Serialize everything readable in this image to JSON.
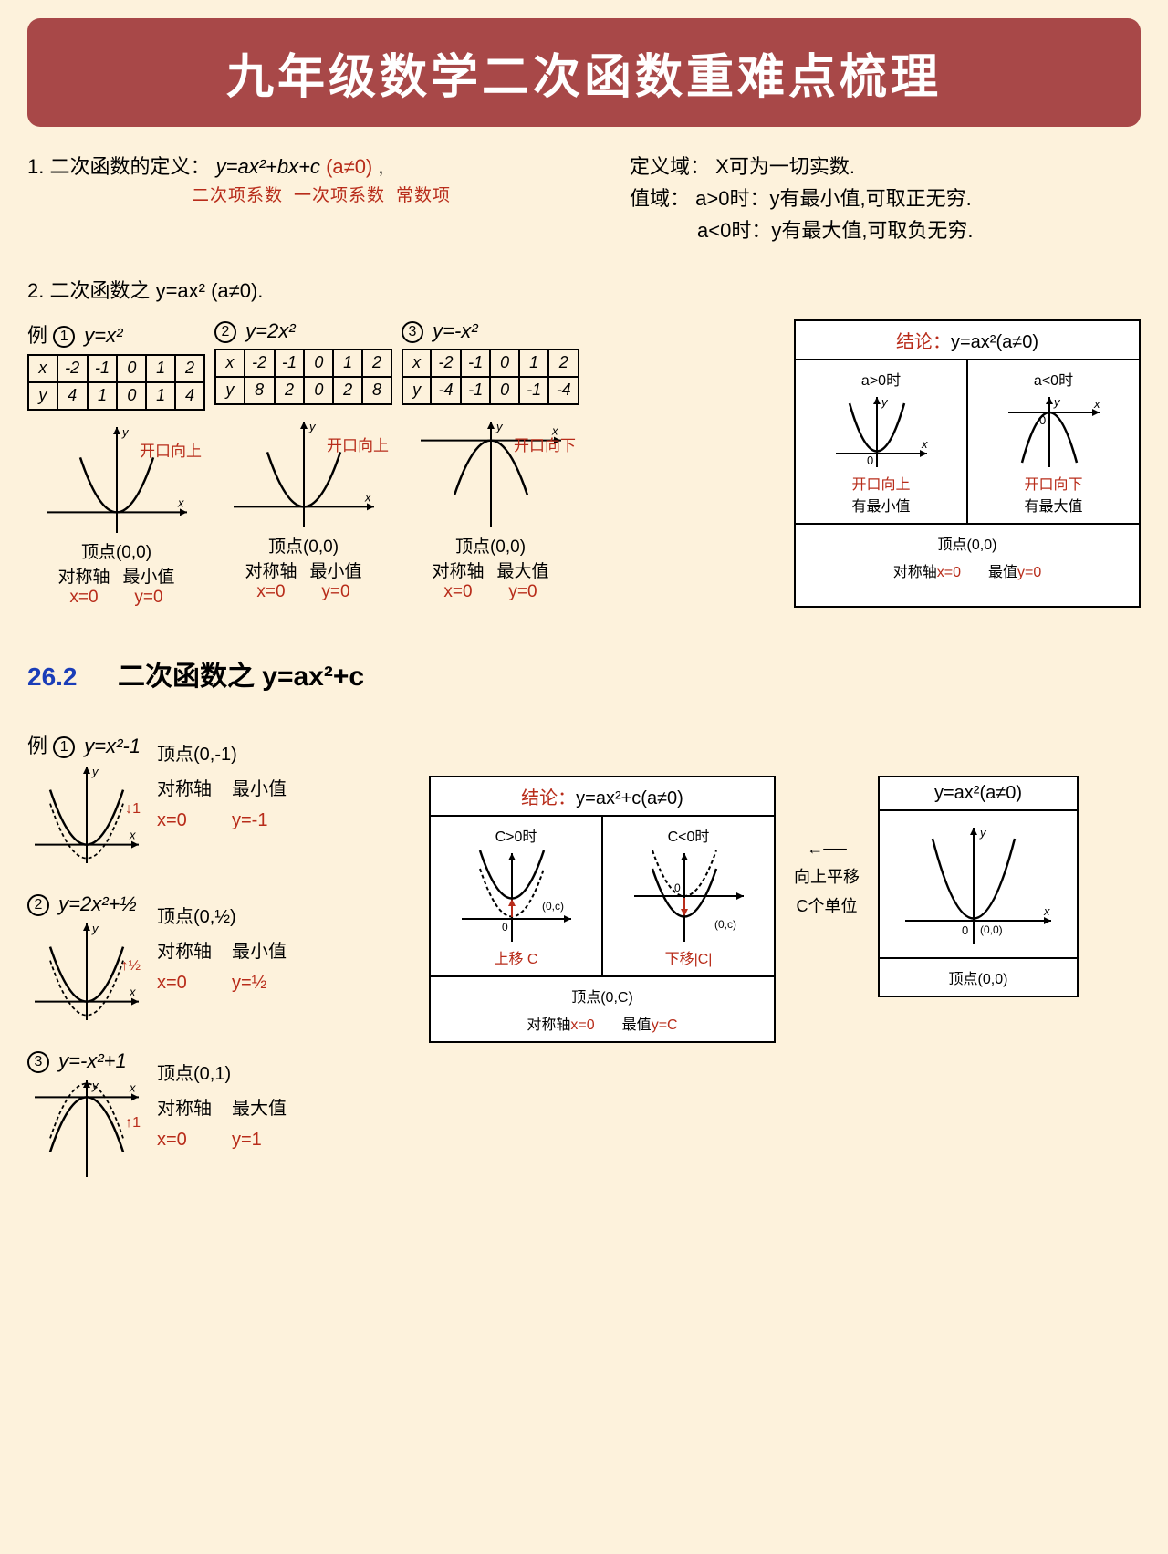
{
  "colors": {
    "bg": "#fdf2dc",
    "banner": "#a84848",
    "red": "#b82c1a",
    "blue": "#1a3db8",
    "black": "#000000",
    "white": "#ffffff"
  },
  "title": "九年级数学二次函数重难点梳理",
  "def": {
    "line1_prefix": "1. 二次函数的定义：",
    "formula": "y=ax²+bx+c",
    "cond": "(a≠0)",
    "coef_a": "二次项系数",
    "coef_b": "一次项系数",
    "coef_c": "常数项",
    "domain_label": "定义域：",
    "domain_text": "X可为一切实数.",
    "range_label": "值域：",
    "range_line1": "a>0时：y有最小值,可取正无穷.",
    "range_line2": "a<0时：y有最大值,可取负无穷."
  },
  "sec_ax2": {
    "heading": "2. 二次函数之 y=ax² (a≠0).",
    "example_label": "例",
    "examples": [
      {
        "num": "①",
        "eq": "y=x²",
        "x": [
          "x",
          "-2",
          "-1",
          "0",
          "1",
          "2"
        ],
        "y": [
          "y",
          "4",
          "1",
          "0",
          "1",
          "4"
        ],
        "open": "开口向上",
        "vertex": "顶点(0,0)",
        "axis_lbl": "对称轴",
        "axis_val": "x=0",
        "ext_lbl": "最小值",
        "ext_val": "y=0",
        "dir": "up"
      },
      {
        "num": "②",
        "eq": "y=2x²",
        "x": [
          "x",
          "-2",
          "-1",
          "0",
          "1",
          "2"
        ],
        "y": [
          "y",
          "8",
          "2",
          "0",
          "2",
          "8"
        ],
        "open": "开口向上",
        "vertex": "顶点(0,0)",
        "axis_lbl": "对称轴",
        "axis_val": "x=0",
        "ext_lbl": "最小值",
        "ext_val": "y=0",
        "dir": "up"
      },
      {
        "num": "③",
        "eq": "y=-x²",
        "x": [
          "x",
          "-2",
          "-1",
          "0",
          "1",
          "2"
        ],
        "y": [
          "y",
          "-4",
          "-1",
          "0",
          "-1",
          "-4"
        ],
        "open": "开口向下",
        "vertex": "顶点(0,0)",
        "axis_lbl": "对称轴",
        "axis_val": "x=0",
        "ext_lbl": "最大值",
        "ext_val": "y=0",
        "dir": "down"
      }
    ],
    "conclusion": {
      "title_pre": "结论：",
      "title_eq": "y=ax²(a≠0)",
      "left": {
        "cond": "a>0时",
        "open": "开口向上",
        "ext": "有最小值"
      },
      "right": {
        "cond": "a<0时",
        "open": "开口向下",
        "ext": "有最大值"
      },
      "bottom": {
        "vertex": "顶点(0,0)",
        "axis_lbl": "对称轴",
        "axis_val": "x=0",
        "ext_lbl": "最值",
        "ext_val": "y=0"
      }
    }
  },
  "sec_262": {
    "num": "26.2",
    "title": "二次函数之 y=ax²+c",
    "example_label": "例",
    "examples": [
      {
        "num": "①",
        "eq": "y=x²-1",
        "shift": "↓1",
        "vertex": "顶点(0,-1)",
        "axis_lbl": "对称轴",
        "axis_val": "x=0",
        "ext_lbl": "最小值",
        "ext_val": "y=-1",
        "dir": "up",
        "voff": -1
      },
      {
        "num": "②",
        "eq": "y=2x²+½",
        "shift": "↑½",
        "vertex": "顶点(0,½)",
        "axis_lbl": "对称轴",
        "axis_val": "x=0",
        "ext_lbl": "最小值",
        "ext_val": "y=½",
        "dir": "up",
        "voff": 0.5
      },
      {
        "num": "③",
        "eq": "y=-x²+1",
        "shift": "↑1",
        "vertex": "顶点(0,1)",
        "axis_lbl": "对称轴",
        "axis_val": "x=0",
        "ext_lbl": "最大值",
        "ext_val": "y=1",
        "dir": "down",
        "voff": 1
      }
    ],
    "conclusion": {
      "title_pre": "结论：",
      "title_eq": "y=ax²+c(a≠0)",
      "left": {
        "cond": "C>0时",
        "note": "上移 C",
        "pt": "(0,c)"
      },
      "right": {
        "cond": "C<0时",
        "note": "下移|C|",
        "pt": "(0,c)"
      },
      "bottom": {
        "vertex": "顶点(0,C)",
        "axis_lbl": "对称轴",
        "axis_val": "x=0",
        "ext_lbl": "最值",
        "ext_val": "y=C"
      }
    },
    "source_box": {
      "eq": "y=ax²(a≠0)",
      "arrow1": "向上平移",
      "arrow2": "C个单位",
      "vertex": "顶点(0,0)",
      "pt": "(0,0)"
    }
  }
}
